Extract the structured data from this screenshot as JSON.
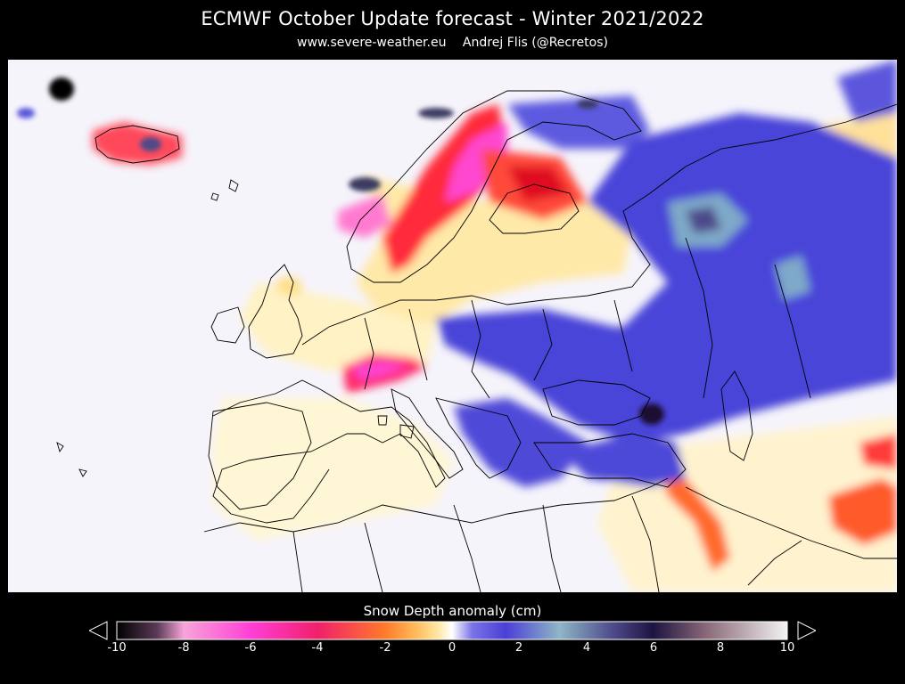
{
  "header": {
    "title": "ECMWF October Update forecast - Winter 2021/2022",
    "source": "www.severe-weather.eu",
    "author": "Andrej Flis (@Recretos)"
  },
  "legend": {
    "label": "Snow Depth anomaly (cm)",
    "min": -10,
    "max": 10,
    "ticks": [
      "-10",
      "-8",
      "-6",
      "-4",
      "-2",
      "0",
      "2",
      "4",
      "6",
      "8",
      "10"
    ],
    "colors": {
      "neg10": "#000000",
      "neg8": "#f7a4d8",
      "neg6": "#ff3fd6",
      "neg4": "#f0206a",
      "neg2": "#ff7a2a",
      "neg1": "#ffe49a",
      "zero": "#ffffff",
      "pos1": "#7a74e6",
      "pos2": "#4a3fd6",
      "pos3": "#8fb6c6",
      "pos4": "#4e4a8a",
      "pos6": "#1e1340",
      "pos8": "#8a6a7a",
      "pos10": "#f3f3f3"
    }
  },
  "map": {
    "region": "Europe",
    "background": "#f6f4fb"
  }
}
